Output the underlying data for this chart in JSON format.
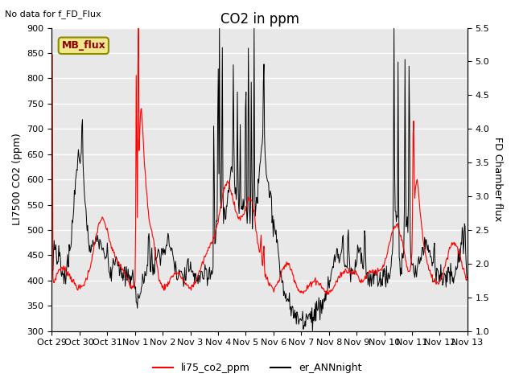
{
  "title": "CO2 in ppm",
  "top_left_text": "No data for f_FD_Flux",
  "ylabel_left": "LI7500 CO2 (ppm)",
  "ylabel_right": "FD Chamber flux",
  "ylim_left": [
    300,
    900
  ],
  "ylim_right": [
    1.0,
    5.5
  ],
  "yticks_left": [
    300,
    350,
    400,
    450,
    500,
    550,
    600,
    650,
    700,
    750,
    800,
    850,
    900
  ],
  "yticks_right": [
    1.0,
    1.5,
    2.0,
    2.5,
    3.0,
    3.5,
    4.0,
    4.5,
    5.0,
    5.5
  ],
  "xtick_labels": [
    "Oct 29",
    "Oct 30",
    "Oct 31",
    "Nov 1",
    "Nov 2",
    "Nov 3",
    "Nov 4",
    "Nov 5",
    "Nov 6",
    "Nov 7",
    "Nov 8",
    "Nov 9",
    "Nov 10",
    "Nov 11",
    "Nov 12",
    "Nov 13"
  ],
  "legend_entries": [
    "li75_co2_ppm",
    "er_ANNnight"
  ],
  "legend_colors": [
    "red",
    "black"
  ],
  "mb_flux_box_color": "#f0e68c",
  "mb_flux_text_color": "#8b0000",
  "mb_flux_border_color": "#8b8b00",
  "background_color": "#e8e8e8",
  "grid_color": "#ffffff",
  "title_fontsize": 12,
  "axis_label_fontsize": 9,
  "tick_fontsize": 8
}
